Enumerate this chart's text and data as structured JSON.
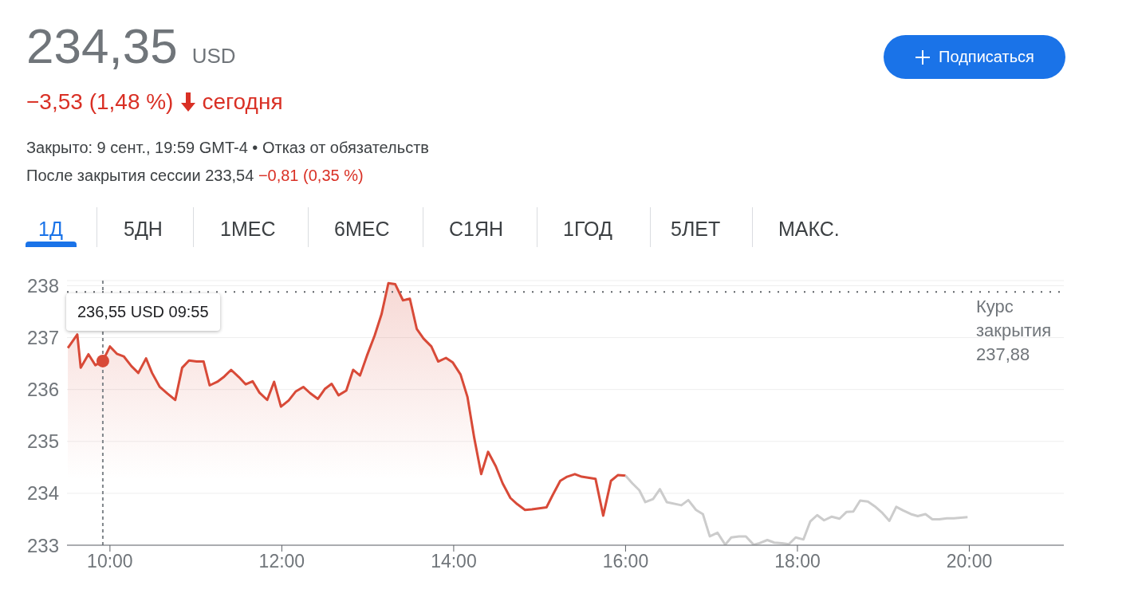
{
  "chart_data": {
    "type": "area",
    "title": "234,35",
    "subtitle": "−3,53 (1,48 %)",
    "annotations": [
      "USD",
      "сегодня",
      "Закрыто: 9 сент., 19:59 GMT-4 • Отказ от обязательств",
      "После закрытия сессии 233,54",
      "−0,81 (0,35 %)",
      "1Д",
      "5ДН",
      "1МЕС",
      "6МЕС",
      "С1ЯН",
      "1ГОД",
      "5ЛЕТ",
      "МАКС.",
      "Подписаться",
      {
        "text": "236,55 USD 09:55",
        "x": 9.917,
        "y": 236.55
      }
    ],
    "series": [
      {
        "color": "#d84a38",
        "x": [
          9.51,
          9.54,
          9.62,
          9.66,
          9.75,
          9.83,
          9.917,
          10.0,
          10.08,
          10.16,
          10.25,
          10.33,
          10.42,
          10.49,
          10.58,
          10.67,
          10.76,
          10.84,
          10.92,
          11.01,
          11.09,
          11.16,
          11.25,
          11.33,
          11.41,
          11.5,
          11.58,
          11.66,
          11.74,
          11.83,
          11.91,
          11.99,
          12.08,
          12.16,
          12.25,
          12.33,
          12.42,
          12.5,
          12.58,
          12.66,
          12.75,
          12.83,
          12.91,
          12.99,
          13.08,
          13.16,
          13.24,
          13.32,
          13.41,
          13.49,
          13.57,
          13.65,
          13.74,
          13.82,
          13.91,
          13.99,
          14.08,
          14.16,
          14.24,
          14.32,
          14.4,
          14.49,
          14.57,
          14.66,
          14.74,
          14.83,
          14.91,
          15.08,
          15.15,
          15.24,
          15.32,
          15.41,
          15.49,
          15.65,
          15.74,
          15.83,
          15.91,
          16.0
        ],
        "values": [
          236.8,
          null,
          237.06,
          236.42,
          236.68,
          236.47,
          236.55,
          236.83,
          236.69,
          236.64,
          236.45,
          236.32,
          236.6,
          236.32,
          236.05,
          235.92,
          235.8,
          236.42,
          236.56,
          236.54,
          236.54,
          236.08,
          236.15,
          236.25,
          236.38,
          236.24,
          236.1,
          236.16,
          235.94,
          235.8,
          236.15,
          235.67,
          235.79,
          235.96,
          236.05,
          235.93,
          235.82,
          236.01,
          236.11,
          235.89,
          235.98,
          236.38,
          236.27,
          236.65,
          237.04,
          237.45,
          238.05,
          238.03,
          237.72,
          237.75,
          237.17,
          236.98,
          236.83,
          236.54,
          236.61,
          236.52,
          236.29,
          235.86,
          235.06,
          234.37,
          234.8,
          234.52,
          234.19,
          233.91,
          233.79,
          233.68,
          233.69,
          233.73,
          233.96,
          234.24,
          234.32,
          234.37,
          234.32,
          234.28,
          233.57,
          234.24,
          234.35,
          234.34
        ]
      },
      {
        "type": "line",
        "color": "#cccccc",
        "x": [
          16.0,
          16.08,
          16.16,
          16.23,
          16.32,
          16.4,
          16.48,
          16.65,
          16.73,
          16.82,
          16.9,
          16.98,
          17.07,
          17.16,
          17.23,
          17.32,
          17.4,
          17.49,
          17.56,
          17.65,
          17.73,
          17.82,
          17.9,
          17.98,
          18.07,
          18.15,
          18.23,
          18.31,
          18.4,
          18.49,
          18.57,
          18.65,
          18.73,
          18.82,
          18.9,
          18.99,
          19.07,
          19.15,
          19.23,
          19.32,
          19.4,
          19.49,
          19.57,
          19.65,
          19.74,
          19.82,
          19.98
        ],
        "values": [
          234.34,
          234.19,
          234.06,
          233.83,
          233.89,
          234.08,
          233.83,
          233.77,
          233.87,
          233.68,
          233.6,
          233.17,
          233.24,
          233.01,
          233.15,
          233.17,
          233.17,
          233.01,
          233.04,
          233.1,
          233.05,
          233.04,
          233.02,
          233.15,
          233.11,
          233.46,
          233.58,
          233.48,
          233.55,
          233.51,
          233.64,
          233.65,
          233.86,
          233.84,
          233.75,
          233.62,
          233.47,
          233.74,
          233.67,
          233.6,
          233.56,
          233.6,
          233.5,
          233.5,
          233.52,
          233.52,
          233.54
        ]
      }
    ],
    "xlim": [
      9.5,
      21.1
    ],
    "xticks": [
      {
        "value": 10,
        "label": "10:00"
      },
      {
        "value": 12,
        "label": "12:00"
      },
      {
        "value": 14,
        "label": "14:00"
      },
      {
        "value": 16,
        "label": "16:00"
      },
      {
        "value": 18,
        "label": "18:00"
      },
      {
        "value": 20,
        "label": "20:00"
      }
    ],
    "ylim": [
      233,
      238.1
    ],
    "yticks": [
      233,
      234,
      235,
      236,
      237,
      238
    ],
    "grid": "y",
    "line_style": "solid",
    "ref_lines": [
      {
        "axis": "y",
        "value": 237.88,
        "label": "Курс закрытия 237,88",
        "line_style": "dotted",
        "color": "#5f6368"
      },
      {
        "axis": "x",
        "value": 9.917,
        "line_style": "dashed",
        "color": "#80868b"
      }
    ]
  }
}
